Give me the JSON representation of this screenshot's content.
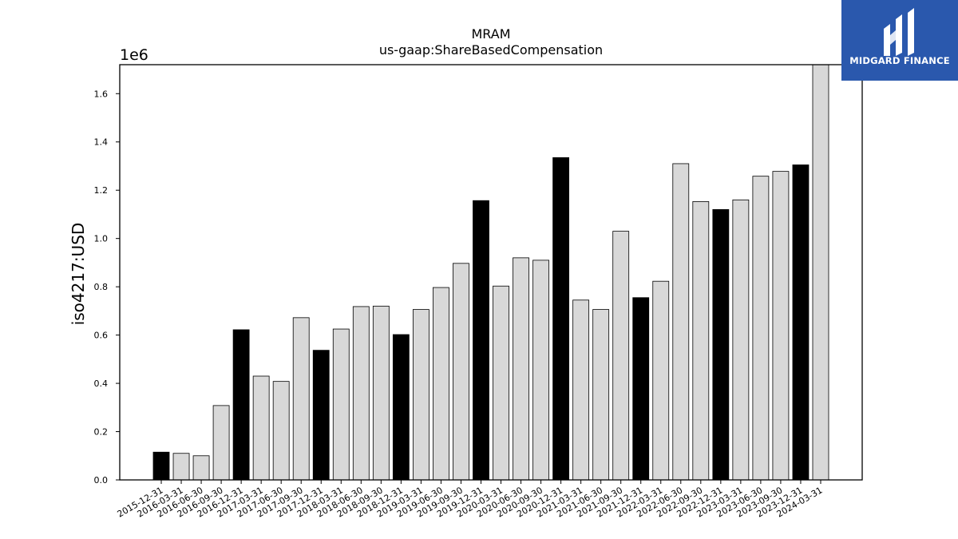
{
  "chart_data": {
    "type": "bar",
    "title": "MRAM",
    "subtitle": "us-gaap:ShareBasedCompensation",
    "xlabel": "",
    "ylabel": "iso4217:USD",
    "y_offset_label": "1e6",
    "ylim": [
      0,
      1.72
    ],
    "yticks": [
      "0.0",
      "0.2",
      "0.4",
      "0.6",
      "0.8",
      "1.0",
      "1.2",
      "1.4",
      "1.6"
    ],
    "grid": false,
    "colors": {
      "annual": "#000000",
      "quarterly": "#d8d8d8",
      "edge": "#000000"
    },
    "categories": [
      "2015-12-31",
      "2016-03-31",
      "2016-06-30",
      "2016-09-30",
      "2016-12-31",
      "2017-03-31",
      "2017-06-30",
      "2017-09-30",
      "2017-12-31",
      "2018-03-31",
      "2018-06-30",
      "2018-09-30",
      "2018-12-31",
      "2019-03-31",
      "2019-06-30",
      "2019-09-30",
      "2019-12-31",
      "2020-03-31",
      "2020-06-30",
      "2020-09-30",
      "2020-12-31",
      "2021-03-31",
      "2021-06-30",
      "2021-09-30",
      "2021-12-31",
      "2022-03-31",
      "2022-06-30",
      "2022-09-30",
      "2022-12-31",
      "2023-03-31",
      "2023-06-30",
      "2023-09-30",
      "2023-12-31",
      "2024-03-31"
    ],
    "values": [
      0.115,
      0.11,
      0.1,
      0.308,
      0.622,
      0.43,
      0.408,
      0.672,
      0.537,
      0.625,
      0.718,
      0.72,
      0.602,
      0.706,
      0.797,
      0.897,
      1.157,
      0.803,
      0.92,
      0.91,
      1.335,
      0.745,
      0.706,
      1.03,
      0.755,
      0.823,
      1.31,
      1.153,
      1.12,
      1.16,
      1.258,
      1.278,
      1.305,
      1.72
    ],
    "highlight": [
      true,
      false,
      false,
      false,
      true,
      false,
      false,
      false,
      true,
      false,
      false,
      false,
      true,
      false,
      false,
      false,
      true,
      false,
      false,
      false,
      true,
      false,
      false,
      false,
      true,
      false,
      false,
      false,
      true,
      false,
      false,
      false,
      true,
      false
    ]
  },
  "logo": {
    "text": "MIDGARD FINANCE",
    "icon": "midgard-logo-icon"
  }
}
